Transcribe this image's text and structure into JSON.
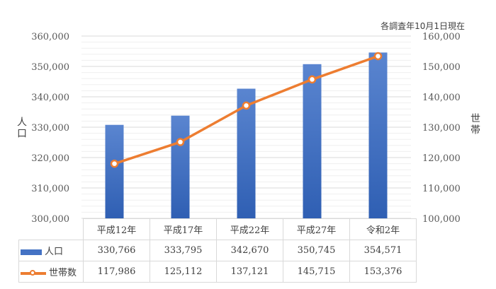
{
  "note": "各調査年10月1日現在",
  "chart_data": {
    "type": "bar",
    "categories": [
      "平成12年",
      "平成17年",
      "平成22年",
      "平成27年",
      "令和2年"
    ],
    "series": [
      {
        "name": "人口",
        "type": "bar",
        "axis": "left",
        "values": [
          330766,
          333795,
          342670,
          350745,
          354571
        ],
        "labels": [
          "330,766",
          "333,795",
          "342,670",
          "350,745",
          "354,571"
        ],
        "color": "#4472c4"
      },
      {
        "name": "世帯数",
        "type": "line",
        "axis": "right",
        "values": [
          117986,
          125112,
          137121,
          145715,
          153376
        ],
        "labels": [
          "117,986",
          "125,112",
          "137,121",
          "145,715",
          "153,376"
        ],
        "color": "#ed7d31"
      }
    ],
    "ylabel": "人口",
    "y2label": "世帯",
    "ylim": [
      300000,
      360000
    ],
    "y2lim": [
      100000,
      160000
    ],
    "yticks": [
      "300,000",
      "310,000",
      "320,000",
      "330,000",
      "340,000",
      "350,000",
      "360,000"
    ],
    "y2ticks": [
      "100,000",
      "110,000",
      "120,000",
      "130,000",
      "140,000",
      "150,000",
      "160,000"
    ],
    "grid": true,
    "legend": "data-table"
  }
}
